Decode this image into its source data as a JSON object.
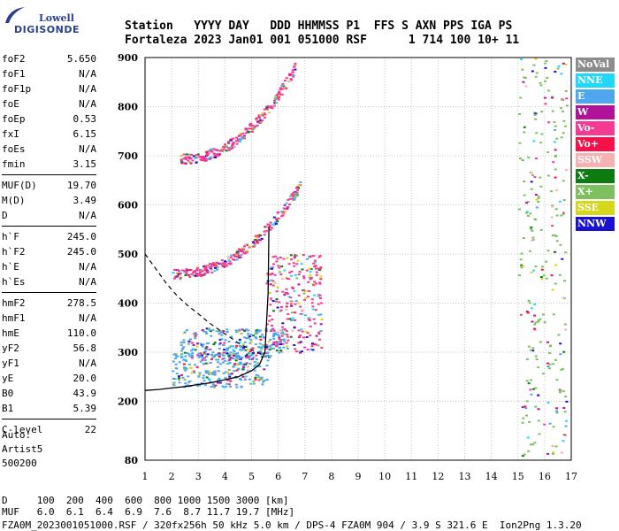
{
  "logo": {
    "top": "Lowell",
    "bottom": "DIGISONDE"
  },
  "header": {
    "line1": "Station   YYYY DAY   DDD HHMMSS P1  FFS S AXN PPS IGA PS",
    "line2": "Fortaleza 2023 Jan01 001 051000 RSF      1 714 100 10+ 11"
  },
  "params": {
    "group1": [
      {
        "label": "foF2",
        "value": "5.650"
      },
      {
        "label": "foF1",
        "value": "N/A"
      },
      {
        "label": "foF1p",
        "value": "N/A"
      },
      {
        "label": "foE",
        "value": "N/A"
      },
      {
        "label": "foEp",
        "value": "0.53"
      },
      {
        "label": "fxI",
        "value": "6.15"
      },
      {
        "label": "foEs",
        "value": "N/A"
      },
      {
        "label": "fmin",
        "value": "3.15"
      }
    ],
    "group2": [
      {
        "label": "MUF(D)",
        "value": "19.70"
      },
      {
        "label": "M(D)",
        "value": "3.49"
      },
      {
        "label": "D",
        "value": "N/A"
      }
    ],
    "group3": [
      {
        "label": "h`F",
        "value": "245.0"
      },
      {
        "label": "h`F2",
        "value": "245.0"
      },
      {
        "label": "h`E",
        "value": "N/A"
      },
      {
        "label": "h`Es",
        "value": "N/A"
      }
    ],
    "group4": [
      {
        "label": "hmF2",
        "value": "278.5"
      },
      {
        "label": "hmF1",
        "value": "N/A"
      },
      {
        "label": "hmE",
        "value": "110.0"
      },
      {
        "label": "yF2",
        "value": "56.8"
      },
      {
        "label": "yF1",
        "value": "N/A"
      },
      {
        "label": "yE",
        "value": "20.0"
      },
      {
        "label": "B0",
        "value": "43.9"
      },
      {
        "label": "B1",
        "value": "5.39"
      }
    ],
    "group5": [
      {
        "label": "C-level",
        "value": "22"
      }
    ]
  },
  "auto": {
    "line1": "Auto:",
    "line2": "Artist5",
    "line3": "500200"
  },
  "legend": [
    {
      "label": "NoVal",
      "color": "#8c8c8c"
    },
    {
      "label": "NNE",
      "color": "#22d8f8"
    },
    {
      "label": "E",
      "color": "#4ea6ee"
    },
    {
      "label": "W",
      "color": "#b0129a"
    },
    {
      "label": "Vo-",
      "color": "#f43a92"
    },
    {
      "label": "Vo+",
      "color": "#f8104a"
    },
    {
      "label": "SSW",
      "color": "#f6b2b2"
    },
    {
      "label": "X-",
      "color": "#0c7c10"
    },
    {
      "label": "X+",
      "color": "#7ec060"
    },
    {
      "label": "SSE",
      "color": "#d6d61a"
    },
    {
      "label": "NNW",
      "color": "#1a10d0"
    }
  ],
  "footer": {
    "line1": "D     100  200  400  600  800 1000 1500 3000 [km]",
    "line2": "MUF   6.0  6.1  6.4  6.9  7.6  8.7 11.7 19.7 [MHz]",
    "line3": "FZA0M_2023001051000.RSF / 320fx256h 50 kHz 5.0 km / DPS-4 FZA0M 904 / 3.9 S 321.6 E  Ion2Png 1.3.20"
  },
  "chart_data": {
    "type": "scatter",
    "title": "",
    "xlabel": "",
    "ylabel": "",
    "xlim": [
      1,
      17
    ],
    "ylim": [
      80,
      900
    ],
    "xticks": [
      1,
      2,
      3,
      4,
      5,
      6,
      7,
      8,
      9,
      10,
      11,
      12,
      13,
      14,
      15,
      16,
      17
    ],
    "yticks": [
      80,
      200,
      300,
      400,
      500,
      600,
      700,
      800,
      900
    ],
    "grid": true,
    "echo_clusters": [
      {
        "name": "o-trace lower",
        "color": "#4ea6ee",
        "x": [
          2.0,
          5.6
        ],
        "y": [
          230,
          300
        ]
      },
      {
        "name": "o-trace E-region blob",
        "color": "#4ea6ee",
        "x": [
          2.3,
          6.2
        ],
        "y": [
          290,
          350
        ]
      },
      {
        "name": "F2 spread",
        "color": "#f43a92",
        "x": [
          5.5,
          7.6
        ],
        "y": [
          300,
          500
        ]
      },
      {
        "name": "second hop",
        "color": "#f43a92",
        "x": [
          2.0,
          6.8
        ],
        "y": [
          460,
          640
        ]
      },
      {
        "name": "third hop",
        "color": "#f43a92",
        "x": [
          2.3,
          6.6
        ],
        "y": [
          695,
          880
        ]
      },
      {
        "name": "spread right",
        "color": "#7ec060",
        "x": [
          15.0,
          16.8
        ],
        "y": [
          90,
          900
        ]
      }
    ],
    "profile_curve": {
      "x": [
        1.0,
        1.5,
        2.0,
        2.5,
        3.0,
        3.5,
        4.0,
        4.5,
        5.0,
        5.3,
        5.5,
        5.62,
        5.65
      ],
      "y": [
        222,
        224,
        227,
        230,
        234,
        238,
        244,
        250,
        262,
        275,
        300,
        420,
        555
      ]
    },
    "dashed_curve": {
      "x": [
        1.0,
        1.4,
        1.8,
        2.2,
        2.6,
        3.0,
        3.4,
        3.8,
        4.2,
        4.6,
        5.0,
        5.3,
        5.5
      ],
      "y": [
        500,
        470,
        440,
        415,
        395,
        378,
        360,
        345,
        330,
        315,
        305,
        298,
        292
      ]
    }
  }
}
